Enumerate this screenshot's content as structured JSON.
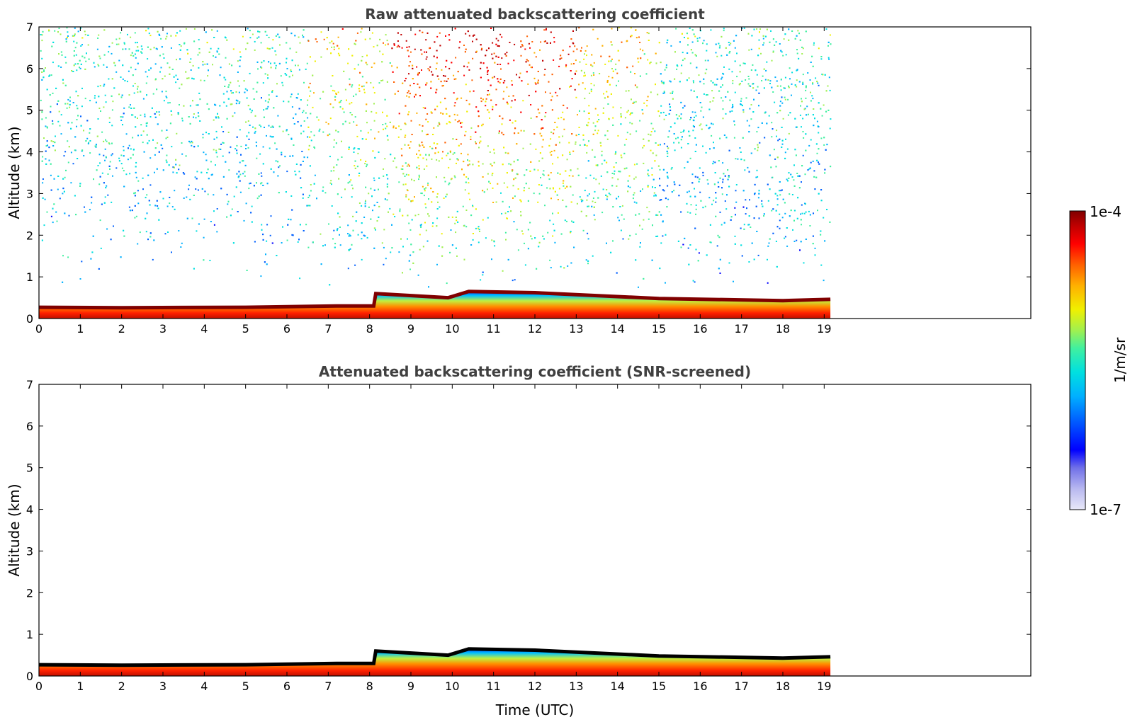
{
  "chart_data": [
    {
      "type": "heatmap",
      "title": "Raw attenuated backscattering coefficient",
      "xlabel": "",
      "ylabel": "Altitude (km)",
      "xlim": [
        0,
        24
      ],
      "ylim": [
        0,
        7
      ],
      "xticks": [
        0,
        1,
        2,
        3,
        4,
        5,
        6,
        7,
        8,
        9,
        10,
        11,
        12,
        13,
        14,
        15,
        16,
        17,
        18,
        19
      ],
      "yticks": [
        0,
        1,
        2,
        3,
        4,
        5,
        6,
        7
      ],
      "data_end_time": 19.15,
      "boundary_layer_top_km": [
        [
          0,
          0.27
        ],
        [
          2,
          0.26
        ],
        [
          5,
          0.27
        ],
        [
          7.2,
          0.3
        ],
        [
          8.1,
          0.3
        ],
        [
          8.15,
          0.6
        ],
        [
          9.9,
          0.5
        ],
        [
          10.4,
          0.65
        ],
        [
          12,
          0.62
        ],
        [
          15,
          0.48
        ],
        [
          18,
          0.43
        ],
        [
          19.15,
          0.46
        ]
      ],
      "noise_description": "speckled background signal aloft, weakest before 7 UTC, strongest between 8.5 and 13 UTC"
    },
    {
      "type": "heatmap",
      "title": "Attenuated backscattering coefficient (SNR-screened)",
      "xlabel": "Time (UTC)",
      "ylabel": "Altitude (km)",
      "xlim": [
        0,
        24
      ],
      "ylim": [
        0,
        7
      ],
      "xticks": [
        0,
        1,
        2,
        3,
        4,
        5,
        6,
        7,
        8,
        9,
        10,
        11,
        12,
        13,
        14,
        15,
        16,
        17,
        18,
        19
      ],
      "yticks": [
        0,
        1,
        2,
        3,
        4,
        5,
        6,
        7
      ],
      "data_end_time": 19.15,
      "boundary_layer_top_km": [
        [
          0,
          0.27
        ],
        [
          2,
          0.26
        ],
        [
          5,
          0.27
        ],
        [
          7.2,
          0.3
        ],
        [
          8.1,
          0.3
        ],
        [
          8.15,
          0.6
        ],
        [
          9.9,
          0.5
        ],
        [
          10.4,
          0.65
        ],
        [
          12,
          0.62
        ],
        [
          15,
          0.48
        ],
        [
          18,
          0.43
        ],
        [
          19.15,
          0.46
        ]
      ],
      "noise_description": "background removed by SNR screening"
    }
  ],
  "colorbar": {
    "max_label": "1e-4",
    "min_label": "1e-7",
    "unit_label": "1/m/sr",
    "colors": [
      "#e8e8f8",
      "#b8b8f0",
      "#7070e8",
      "#0000ff",
      "#0060ff",
      "#00b0ff",
      "#00e0e0",
      "#40f0a0",
      "#a0f050",
      "#f0f000",
      "#ffb000",
      "#ff6000",
      "#ff0000",
      "#c00000",
      "#800000"
    ]
  }
}
